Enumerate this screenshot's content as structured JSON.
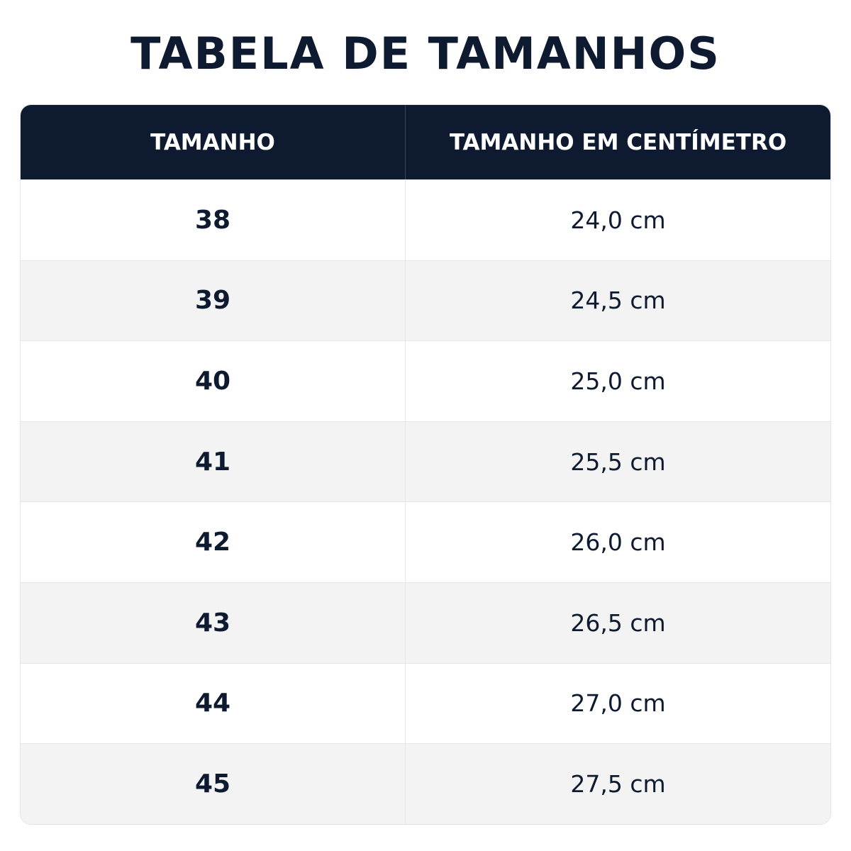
{
  "title": "TABELA DE TAMANHOS",
  "table": {
    "header": [
      "TAMANHO",
      "TAMANHO EM CENTÍMETRO"
    ],
    "rows": [
      [
        "38",
        "24,0 cm"
      ],
      [
        "39",
        "24,5 cm"
      ],
      [
        "40",
        "25,0 cm"
      ],
      [
        "41",
        "25,5 cm"
      ],
      [
        "42",
        "26,0 cm"
      ],
      [
        "43",
        "26,5 cm"
      ],
      [
        "44",
        "27,0 cm"
      ],
      [
        "45",
        "27,5 cm"
      ]
    ]
  }
}
